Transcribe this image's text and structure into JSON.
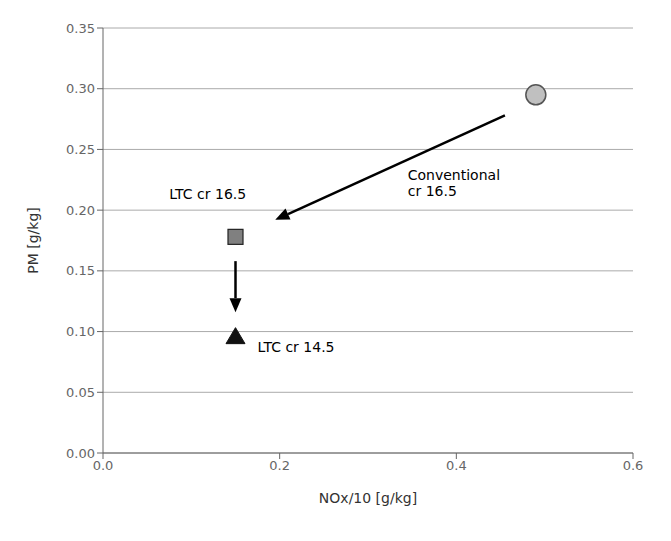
{
  "chart_data": {
    "type": "scatter",
    "xlabel": "NOx/10 [g/kg]",
    "ylabel": "PM [g/kg]",
    "xlim": [
      0.0,
      0.6
    ],
    "ylim": [
      0.0,
      0.35
    ],
    "xticks": [
      {
        "value": 0.0,
        "label": "0.0"
      },
      0.2,
      0.4,
      0.6
    ],
    "yticks": [
      {
        "value": 0.0,
        "label": "0.00"
      },
      0.05,
      {
        "value": 0.1,
        "label": "0.10"
      },
      0.15,
      {
        "value": 0.2,
        "label": "0.20"
      },
      0.25,
      {
        "value": 0.3,
        "label": "0.30"
      },
      0.35
    ],
    "grid": "y",
    "series": [
      {
        "color": "#c0c0c0",
        "marker": "circle",
        "x": [
          0.49
        ],
        "values": [
          0.295
        ]
      },
      {
        "color": "#808080",
        "marker": "square",
        "x": [
          0.15
        ],
        "values": [
          0.178
        ]
      },
      {
        "color": "#111111",
        "marker": "triangle",
        "x": [
          0.15
        ],
        "values": [
          0.095
        ]
      }
    ],
    "arrows": [
      {
        "x_start": 0.455,
        "y_start": 0.278,
        "x_end": 0.195,
        "y_end": 0.192
      },
      {
        "x_start": 0.15,
        "y_start": 0.158,
        "x_end": 0.15,
        "y_end": 0.116
      }
    ],
    "annotations": [
      {
        "text": "Conventional\ncr 16.5",
        "x": 0.345,
        "y": 0.222
      },
      {
        "text": "LTC cr 16.5",
        "x": 0.075,
        "y": 0.213
      },
      {
        "text": "LTC cr 14.5",
        "x": 0.175,
        "y": 0.087
      }
    ]
  }
}
